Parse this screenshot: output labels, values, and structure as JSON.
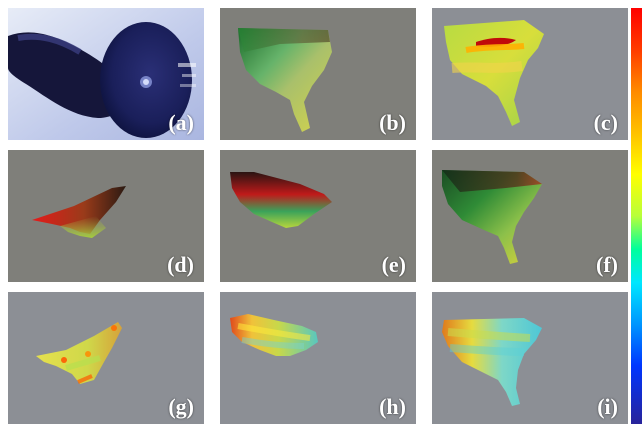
{
  "panels": [
    {
      "id": "a",
      "label": "(a)"
    },
    {
      "id": "b",
      "label": "(b)"
    },
    {
      "id": "c",
      "label": "(c)"
    },
    {
      "id": "d",
      "label": "(d)"
    },
    {
      "id": "e",
      "label": "(e)"
    },
    {
      "id": "f",
      "label": "(f)"
    },
    {
      "id": "g",
      "label": "(g)"
    },
    {
      "id": "h",
      "label": "(h)"
    },
    {
      "id": "i",
      "label": "(i)"
    }
  ],
  "colors": {
    "background_gray": "#7f7f7a",
    "panel_gray_alt": "#8c8f95",
    "photo_blue": "#4c5fc8"
  }
}
